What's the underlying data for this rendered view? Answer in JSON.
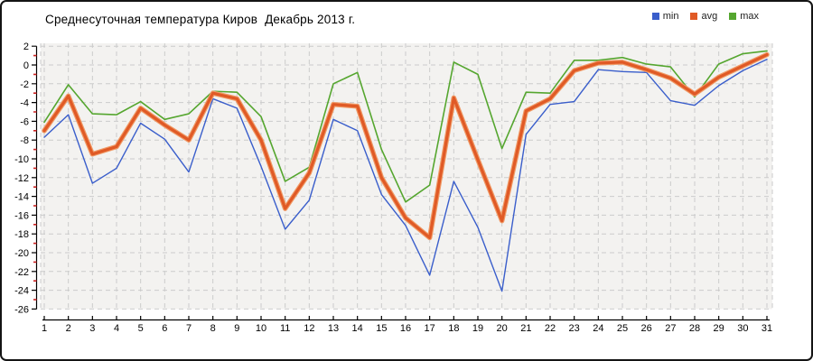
{
  "window": {
    "background": "#ffffff",
    "border_color": "#141414"
  },
  "chart_data": {
    "type": "line",
    "title": "Среднесуточная температура Киров  Декабрь 2013 г.",
    "xlabel": "",
    "ylabel": "",
    "x": [
      1,
      2,
      3,
      4,
      5,
      6,
      7,
      8,
      9,
      10,
      11,
      12,
      13,
      14,
      15,
      16,
      17,
      18,
      19,
      20,
      21,
      22,
      23,
      24,
      25,
      26,
      27,
      28,
      29,
      30,
      31
    ],
    "series": [
      {
        "name": "min",
        "color": "#3a5ecb",
        "values": [
          -7.7,
          -5.3,
          -12.6,
          -11.0,
          -6.2,
          -7.9,
          -11.4,
          -3.6,
          -4.6,
          -10.8,
          -17.5,
          -14.4,
          -5.8,
          -7.0,
          -13.8,
          -17.1,
          -22.4,
          -12.4,
          -17.3,
          -24.1,
          -7.4,
          -4.2,
          -3.9,
          -0.5,
          -0.7,
          -0.8,
          -3.8,
          -4.3,
          -2.2,
          -0.6,
          0.6
        ]
      },
      {
        "name": "avg",
        "color": "#e05a26",
        "casing_color": "#f09a66",
        "values": [
          -7.0,
          -3.3,
          -9.5,
          -8.7,
          -4.6,
          -6.4,
          -8.0,
          -3.0,
          -3.6,
          -8.0,
          -15.3,
          -11.5,
          -4.2,
          -4.4,
          -12.0,
          -16.3,
          -18.4,
          -3.5,
          -10.1,
          -16.6,
          -4.9,
          -3.6,
          -0.6,
          0.2,
          0.3,
          -0.5,
          -1.4,
          -3.1,
          -1.3,
          -0.1,
          1.1
        ]
      },
      {
        "name": "max",
        "color": "#55a62f",
        "values": [
          -6.1,
          -2.1,
          -5.2,
          -5.3,
          -3.9,
          -5.8,
          -5.2,
          -2.8,
          -2.9,
          -5.5,
          -12.4,
          -10.9,
          -2.0,
          -0.8,
          -9.0,
          -14.6,
          -12.8,
          0.3,
          -1.0,
          -8.9,
          -2.9,
          -3.0,
          0.5,
          0.5,
          0.8,
          0.1,
          -0.2,
          -3.4,
          0.1,
          1.2,
          1.5
        ]
      }
    ],
    "ylim": [
      -26,
      2
    ],
    "ytick_step": 2,
    "yminor_step": 1,
    "grid": "dashed",
    "grid_color": "#cbcbcb",
    "plot_bg": "#f3f2f0",
    "axis_color": "#000000",
    "minor_tick_color": "#cc2222",
    "legend_position": "top-right"
  }
}
